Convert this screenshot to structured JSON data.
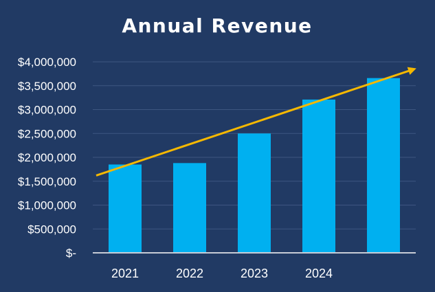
{
  "chart_data": {
    "type": "bar",
    "title": "Annual Revenue",
    "categories": [
      "2021",
      "2022",
      "2023",
      "2024",
      ""
    ],
    "values": [
      1850000,
      1880000,
      2500000,
      3210000,
      3660000
    ],
    "ylim": [
      0,
      4000000
    ],
    "yticks": [
      0,
      500000,
      1000000,
      1500000,
      2000000,
      2500000,
      3000000,
      3500000,
      4000000
    ],
    "ytick_labels": [
      "$-",
      "$500,000",
      "$1,000,000",
      "$1,500,000",
      "$2,000,000",
      "$2,500,000",
      "$3,000,000",
      "$3,500,000",
      "$4,000,000"
    ],
    "xlabel": "",
    "ylabel": "",
    "grid": true,
    "legend": "none",
    "trend_arrow": {
      "start_value": 1620000,
      "end_value": 3850000
    },
    "colors": {
      "background": "#213A64",
      "bar": "#00B0F0",
      "grid": "#3E5681",
      "axis": "#C8CCD6",
      "trend": "#F5B800",
      "text": "#FFFFFF"
    }
  }
}
